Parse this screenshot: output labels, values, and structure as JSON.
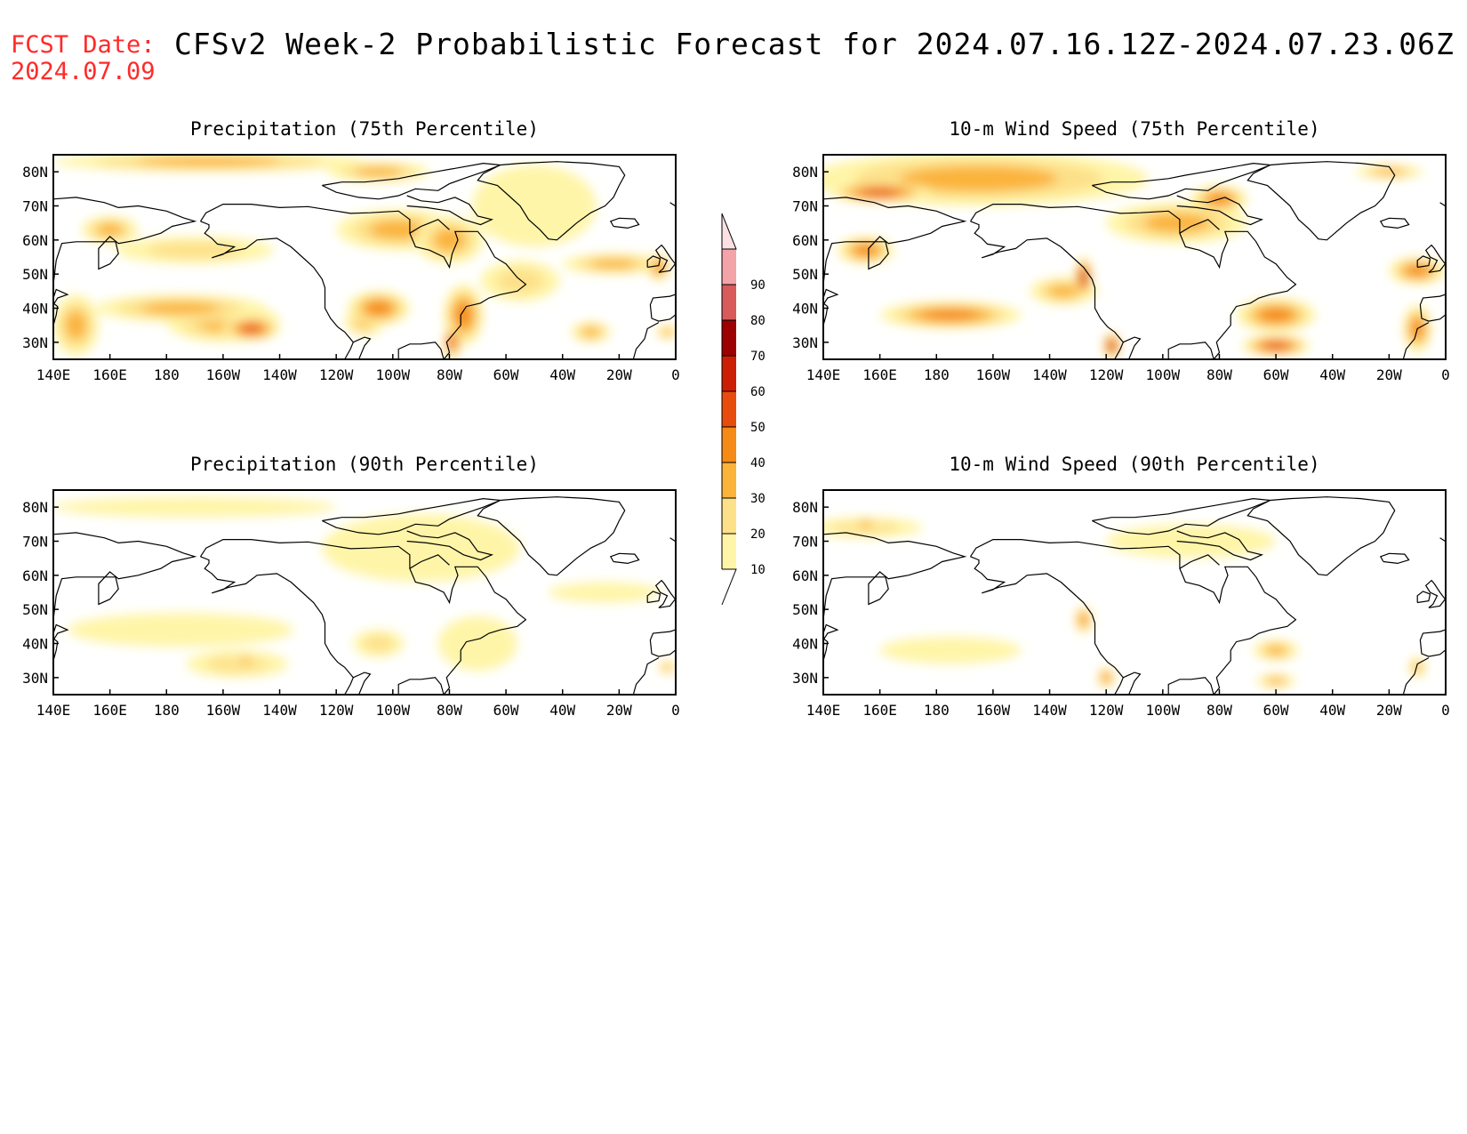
{
  "header": {
    "fcst_label": "FCST Date:",
    "fcst_date": "2024.07.09",
    "title": "CFSv2 Week-2 Probabilistic Forecast for 2024.07.16.12Z-2024.07.23.06Z"
  },
  "lon_ticks": [
    "140E",
    "160E",
    "180",
    "160W",
    "140W",
    "120W",
    "100W",
    "80W",
    "60W",
    "40W",
    "20W",
    "0"
  ],
  "lat_ticks": [
    "80N",
    "70N",
    "60N",
    "50N",
    "40N",
    "30N"
  ],
  "colorbar": {
    "levels": [
      "10",
      "20",
      "30",
      "40",
      "50",
      "60",
      "70",
      "80",
      "90"
    ],
    "colors": [
      "#fff5a8",
      "#fde08a",
      "#fbb33a",
      "#f58a16",
      "#e84c0c",
      "#cc1e05",
      "#9c0000",
      "#d85a5a",
      "#f2a4a8",
      "#fde0e4"
    ]
  },
  "panels": [
    {
      "title": "Precipitation (75th Percentile)",
      "blobs": [
        {
          "lon": 200,
          "lat": 36,
          "rx": 20,
          "ry": 6,
          "level": 2
        },
        {
          "lon": 210,
          "lat": 34,
          "rx": 10,
          "ry": 3.5,
          "level": 4
        },
        {
          "lon": 185,
          "lat": 40,
          "rx": 30,
          "ry": 4,
          "level": 2
        },
        {
          "lon": 148,
          "lat": 35,
          "rx": 8,
          "ry": 9,
          "level": 2
        },
        {
          "lon": 190,
          "lat": 57,
          "rx": 28,
          "ry": 4,
          "level": 1
        },
        {
          "lon": 160,
          "lat": 63,
          "rx": 10,
          "ry": 4,
          "level": 2
        },
        {
          "lon": 195,
          "lat": 83,
          "rx": 55,
          "ry": 3,
          "level": 2
        },
        {
          "lon": 255,
          "lat": 40,
          "rx": 11,
          "ry": 5,
          "level": 3
        },
        {
          "lon": 250,
          "lat": 36,
          "rx": 7,
          "ry": 4,
          "level": 2
        },
        {
          "lon": 285,
          "lat": 38,
          "rx": 7,
          "ry": 9,
          "level": 3
        },
        {
          "lon": 281,
          "lat": 30,
          "rx": 3,
          "ry": 5,
          "level": 4
        },
        {
          "lon": 262,
          "lat": 63,
          "rx": 22,
          "ry": 6,
          "level": 2
        },
        {
          "lon": 280,
          "lat": 60,
          "rx": 12,
          "ry": 7,
          "level": 2
        },
        {
          "lon": 255,
          "lat": 80,
          "rx": 18,
          "ry": 3,
          "level": 2
        },
        {
          "lon": 310,
          "lat": 70,
          "rx": 22,
          "ry": 12,
          "level": 0
        },
        {
          "lon": 305,
          "lat": 48,
          "rx": 14,
          "ry": 6,
          "level": 1
        },
        {
          "lon": 338,
          "lat": 53,
          "rx": 18,
          "ry": 3,
          "level": 2
        },
        {
          "lon": 354,
          "lat": 52,
          "rx": 4,
          "ry": 4,
          "level": 3
        },
        {
          "lon": 330,
          "lat": 33,
          "rx": 7,
          "ry": 3,
          "level": 2
        },
        {
          "lon": 357,
          "lat": 33,
          "rx": 4,
          "ry": 2,
          "level": 2
        }
      ]
    },
    {
      "title": "10-m Wind Speed (75th Percentile)",
      "blobs": [
        {
          "lon": 195,
          "lat": 78,
          "rx": 60,
          "ry": 8,
          "level": 2
        },
        {
          "lon": 160,
          "lat": 74,
          "rx": 18,
          "ry": 3,
          "level": 4
        },
        {
          "lon": 155,
          "lat": 57,
          "rx": 10,
          "ry": 4,
          "level": 3
        },
        {
          "lon": 185,
          "lat": 38,
          "rx": 25,
          "ry": 4,
          "level": 3
        },
        {
          "lon": 225,
          "lat": 45,
          "rx": 12,
          "ry": 4,
          "level": 2
        },
        {
          "lon": 232,
          "lat": 49,
          "rx": 3,
          "ry": 6,
          "level": 5
        },
        {
          "lon": 242,
          "lat": 29,
          "rx": 3,
          "ry": 4,
          "level": 5
        },
        {
          "lon": 265,
          "lat": 65,
          "rx": 25,
          "ry": 6,
          "level": 2
        },
        {
          "lon": 300,
          "lat": 38,
          "rx": 14,
          "ry": 5,
          "level": 3
        },
        {
          "lon": 300,
          "lat": 29,
          "rx": 12,
          "ry": 3,
          "level": 4
        },
        {
          "lon": 350,
          "lat": 34,
          "rx": 5,
          "ry": 7,
          "level": 3
        },
        {
          "lon": 350,
          "lat": 51,
          "rx": 10,
          "ry": 4,
          "level": 3
        },
        {
          "lon": 340,
          "lat": 80,
          "rx": 12,
          "ry": 2,
          "level": 2
        },
        {
          "lon": 280,
          "lat": 72,
          "rx": 10,
          "ry": 4,
          "level": 3
        }
      ]
    },
    {
      "title": "Precipitation (90th Percentile)",
      "blobs": [
        {
          "lon": 205,
          "lat": 34,
          "rx": 18,
          "ry": 4,
          "level": 1
        },
        {
          "lon": 208,
          "lat": 35,
          "rx": 5,
          "ry": 1.5,
          "level": 2
        },
        {
          "lon": 185,
          "lat": 44,
          "rx": 40,
          "ry": 5,
          "level": 0
        },
        {
          "lon": 270,
          "lat": 68,
          "rx": 35,
          "ry": 10,
          "level": 0
        },
        {
          "lon": 255,
          "lat": 40,
          "rx": 9,
          "ry": 4,
          "level": 1
        },
        {
          "lon": 290,
          "lat": 40,
          "rx": 14,
          "ry": 8,
          "level": 0
        },
        {
          "lon": 190,
          "lat": 80,
          "rx": 50,
          "ry": 3,
          "level": 0
        },
        {
          "lon": 335,
          "lat": 55,
          "rx": 20,
          "ry": 3,
          "level": 0
        },
        {
          "lon": 357,
          "lat": 33,
          "rx": 3,
          "ry": 2,
          "level": 2
        }
      ]
    },
    {
      "title": "10-m Wind Speed (90th Percentile)",
      "blobs": [
        {
          "lon": 155,
          "lat": 74,
          "rx": 20,
          "ry": 3,
          "level": 1
        },
        {
          "lon": 155,
          "lat": 75,
          "rx": 6,
          "ry": 1.5,
          "level": 2
        },
        {
          "lon": 232,
          "lat": 47,
          "rx": 3,
          "ry": 4,
          "level": 3
        },
        {
          "lon": 240,
          "lat": 30,
          "rx": 3,
          "ry": 3,
          "level": 3
        },
        {
          "lon": 300,
          "lat": 38,
          "rx": 8,
          "ry": 3,
          "level": 2
        },
        {
          "lon": 300,
          "lat": 29,
          "rx": 7,
          "ry": 2,
          "level": 2
        },
        {
          "lon": 270,
          "lat": 70,
          "rx": 30,
          "ry": 5,
          "level": 0
        },
        {
          "lon": 185,
          "lat": 38,
          "rx": 25,
          "ry": 4,
          "level": 0
        },
        {
          "lon": 350,
          "lat": 33,
          "rx": 3,
          "ry": 3,
          "level": 2
        }
      ]
    }
  ]
}
